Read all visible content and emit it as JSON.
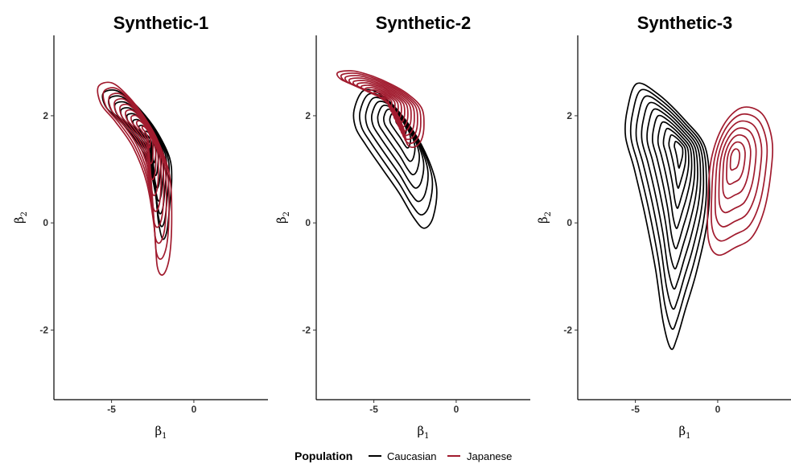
{
  "chart_data": [
    {
      "type": "contour",
      "title": "Synthetic-1",
      "xlabel_symbol": "β",
      "xlabel_subscript": "1",
      "ylabel_symbol": "β",
      "ylabel_subscript": "2",
      "xlim": [
        -8.5,
        4.5
      ],
      "ylim": [
        -3.3,
        3.5
      ],
      "xticks": [
        -5,
        0
      ],
      "yticks": [
        -2,
        0,
        2
      ],
      "series": [
        {
          "name": "Caucasian",
          "color": "#000000",
          "center": [
            -2.6,
            1.6
          ],
          "extent_x": [
            -5.6,
            -1.3
          ],
          "extent_y": [
            -0.3,
            2.5
          ],
          "levels": 8
        },
        {
          "name": "Japanese",
          "color": "#A11B2E",
          "center": [
            -2.8,
            1.7
          ],
          "extent_x": [
            -5.9,
            -1.3
          ],
          "extent_y": [
            -1.0,
            2.65
          ],
          "levels": 9
        }
      ]
    },
    {
      "type": "contour",
      "title": "Synthetic-2",
      "xlabel_symbol": "β",
      "xlabel_subscript": "1",
      "ylabel_symbol": "β",
      "ylabel_subscript": "2",
      "xlim": [
        -8.5,
        4.5
      ],
      "ylim": [
        -3.3,
        3.5
      ],
      "xticks": [
        -5,
        0
      ],
      "yticks": [
        -2,
        0,
        2
      ],
      "series": [
        {
          "name": "Caucasian",
          "color": "#000000",
          "center": [
            -3.3,
            1.9
          ],
          "extent_x": [
            -6.2,
            -1.2
          ],
          "extent_y": [
            -0.1,
            2.5
          ],
          "levels": 8
        },
        {
          "name": "Japanese",
          "color": "#A11B2E",
          "center": [
            -4.3,
            2.3
          ],
          "extent_x": [
            -7.3,
            -1.9
          ],
          "extent_y": [
            1.4,
            2.85
          ],
          "levels": 12
        }
      ]
    },
    {
      "type": "contour",
      "title": "Synthetic-3",
      "xlabel_symbol": "β",
      "xlabel_subscript": "1",
      "ylabel_symbol": "β",
      "ylabel_subscript": "2",
      "xlim": [
        -8.5,
        4.5
      ],
      "ylim": [
        -3.3,
        3.5
      ],
      "xticks": [
        -5,
        0
      ],
      "yticks": [
        -2,
        0,
        2
      ],
      "series": [
        {
          "name": "Caucasian",
          "color": "#000000",
          "center": [
            -2.3,
            1.4
          ],
          "extent_x": [
            -5.7,
            -0.5
          ],
          "extent_y": [
            -2.35,
            2.6
          ],
          "levels": 10
        },
        {
          "name": "Japanese",
          "color": "#A11B2E",
          "center": [
            1.0,
            1.25
          ],
          "extent_x": [
            -0.8,
            3.3
          ],
          "extent_y": [
            -0.6,
            2.15
          ],
          "levels": 7
        }
      ]
    }
  ],
  "legend": {
    "title": "Population",
    "items": [
      {
        "label": "Caucasian",
        "color": "#000000"
      },
      {
        "label": "Japanese",
        "color": "#A11B2E"
      }
    ]
  }
}
